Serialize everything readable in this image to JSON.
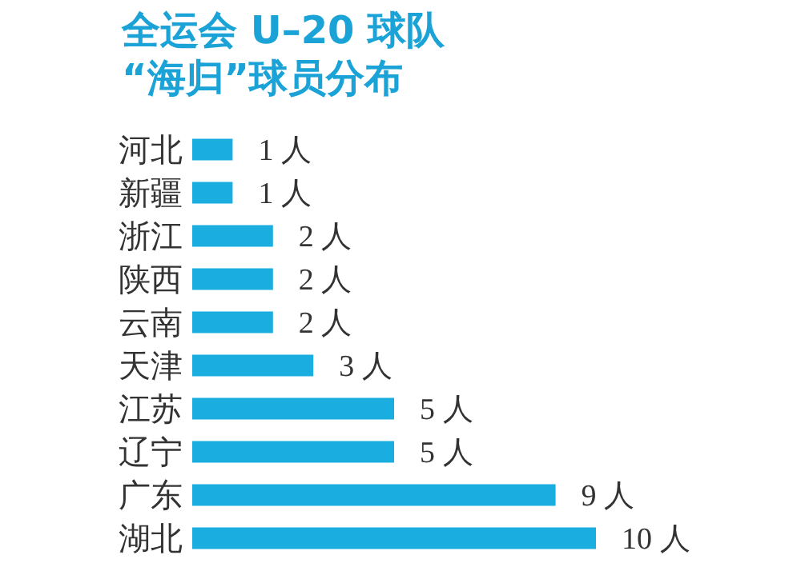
{
  "chart_data": {
    "type": "bar",
    "orientation": "horizontal",
    "title": "全运会 U–20 球队\n“海归”球员分布",
    "categories": [
      "河北",
      "新疆",
      "浙江",
      "陕西",
      "云南",
      "天津",
      "江苏",
      "辽宁",
      "广东",
      "湖北"
    ],
    "values": [
      1,
      1,
      2,
      2,
      2,
      3,
      5,
      5,
      9,
      10
    ],
    "value_labels": [
      "1 人",
      "1 人",
      "2 人",
      "2 人",
      "2 人",
      "3 人",
      "5 人",
      "5 人",
      "9 人",
      "10 人"
    ],
    "color": "#1aaee0"
  }
}
